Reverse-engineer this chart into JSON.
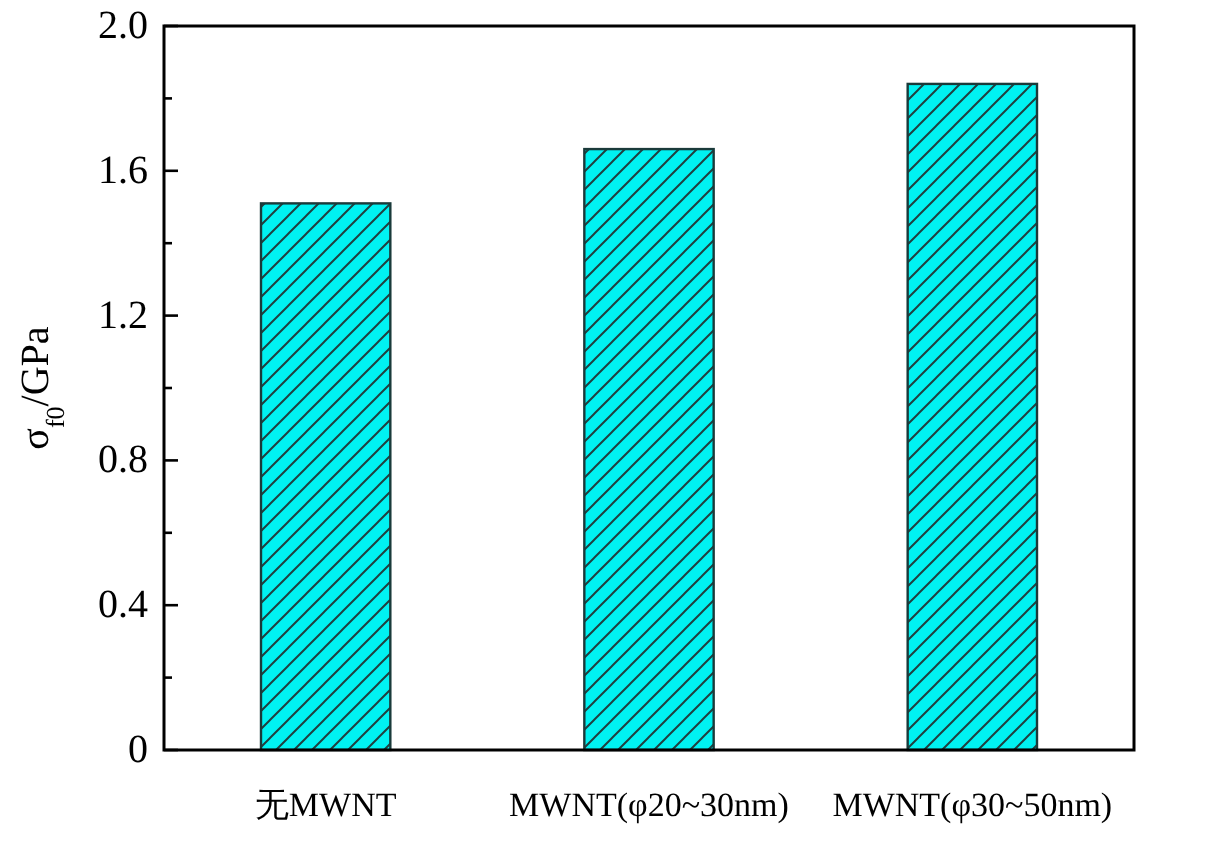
{
  "chart_data": {
    "type": "bar",
    "ylabel": "σ$_{f0}$/GPa",
    "categories": [
      "无MWNT",
      "MWNT(φ20~30nm)",
      "MWNT(φ30~50nm)"
    ],
    "values": [
      1.51,
      1.66,
      1.84
    ],
    "color": "#00f2f2",
    "ylim": [
      0,
      2.0
    ],
    "yticks": [
      0,
      {
        "value": 0.2,
        "label": null
      },
      0.4,
      {
        "value": 0.6,
        "label": null
      },
      0.8,
      {
        "value": 1.0,
        "label": null
      },
      1.2,
      {
        "value": 1.4,
        "label": null
      },
      1.6,
      {
        "value": 1.8,
        "label": null
      },
      {
        "value": 2.0,
        "label": "2.0"
      }
    ],
    "grid": false
  }
}
